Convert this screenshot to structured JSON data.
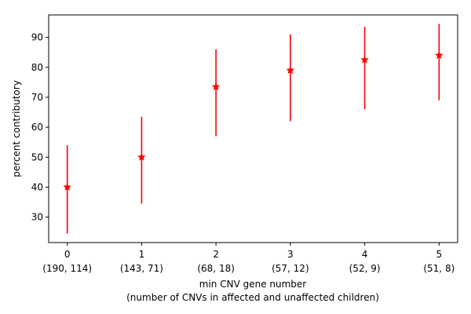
{
  "chart_data": {
    "type": "scatter",
    "title": "",
    "xlabel": "min CNV gene number",
    "xlabel_line2": "(number of CNVs in affected and unaffected children)",
    "ylabel": "percent contributory",
    "x": [
      0,
      1,
      2,
      3,
      4,
      5
    ],
    "x_tick_labels": [
      "0",
      "1",
      "2",
      "3",
      "4",
      "5"
    ],
    "x_tick_sublabels": [
      "(190, 114)",
      "(143, 71)",
      "(68, 18)",
      "(57, 12)",
      "(52, 9)",
      "(51, 8)"
    ],
    "series": [
      {
        "values": [
          40,
          50,
          73.5,
          79,
          82.5,
          84
        ],
        "error_low": [
          24.5,
          34.5,
          57,
          62,
          66,
          69
        ],
        "error_high": [
          54,
          63.5,
          86,
          91,
          93.5,
          94.5
        ],
        "marker": "star",
        "color": "#ff0000"
      }
    ],
    "xlim": [
      -0.25,
      5.25
    ],
    "ylim": [
      21.5,
      97.5
    ],
    "y_ticks": [
      30,
      40,
      50,
      60,
      70,
      80,
      90
    ],
    "grid": false,
    "legend": "none"
  }
}
